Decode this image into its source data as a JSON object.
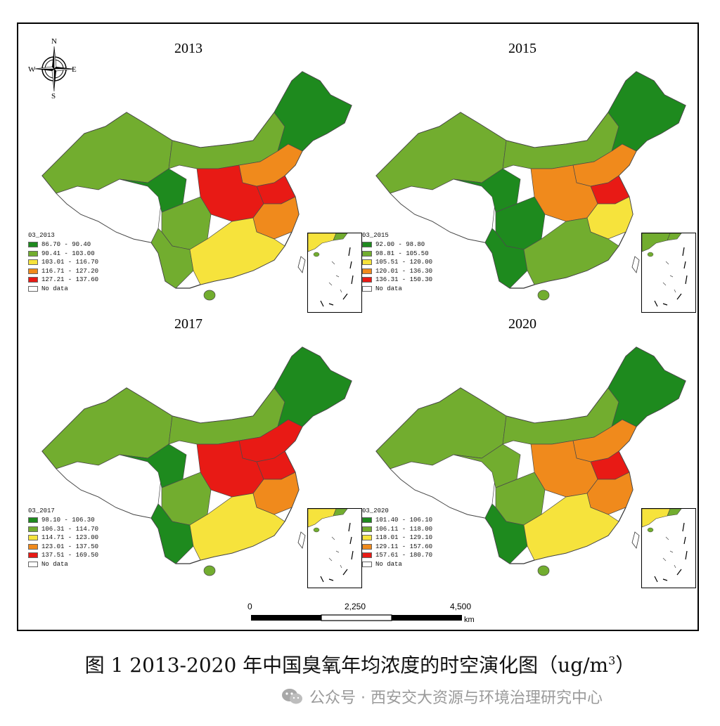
{
  "caption_prefix": "图 1 2013-2020 年中国臭氧年均浓度的时空演化图（ug/m",
  "caption_sup": "3",
  "caption_suffix": "）",
  "watermark": "公众号 · 西安交大资源与环境治理研究中心",
  "compass": {
    "n": "N",
    "s": "S",
    "e": "E",
    "w": "W"
  },
  "scale": {
    "labels": [
      "0",
      "2,250",
      "4,500"
    ],
    "unit": "km"
  },
  "colors": {
    "c1": "#1e8a1e",
    "c2": "#72ad2f",
    "c3": "#f6e33c",
    "c4": "#f08a1c",
    "c5": "#e81a15",
    "nodata": "#ffffff"
  },
  "no_data_label": "No data",
  "panels": [
    {
      "year": "2013",
      "legend_title": "03_2013",
      "classes": [
        "86.70 - 90.40",
        "90.41 - 103.00",
        "103.01 - 116.70",
        "116.71 - 127.20",
        "127.21 - 137.60"
      ]
    },
    {
      "year": "2015",
      "legend_title": "03_2015",
      "classes": [
        "92.00 - 98.80",
        "98.81 - 105.50",
        "105.51 - 120.00",
        "120.01 - 136.30",
        "136.31 - 150.30"
      ]
    },
    {
      "year": "2017",
      "legend_title": "03_2017",
      "classes": [
        "98.10 - 106.30",
        "106.31 - 114.70",
        "114.71 - 123.00",
        "123.01 - 137.50",
        "137.51 - 169.50"
      ]
    },
    {
      "year": "2020",
      "legend_title": "03_2020",
      "classes": [
        "101.40 - 106.10",
        "106.11 - 118.00",
        "118.01 - 129.10",
        "129.11 - 157.60",
        "157.61 - 180.70"
      ]
    }
  ]
}
